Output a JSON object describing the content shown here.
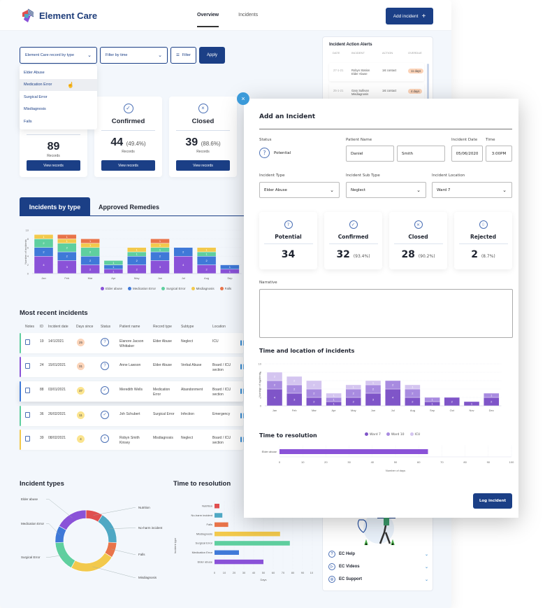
{
  "header": {
    "brand": "Element Care",
    "nav": [
      {
        "label": "Overview",
        "active": true
      },
      {
        "label": "Incidents",
        "active": false
      }
    ],
    "add_incident_label": "Add incident",
    "add_icon": "+"
  },
  "filters": {
    "record_type_label": "Element Care record by type",
    "time_label": "Filter by time",
    "filter_label": "Filter",
    "apply_label": "Apply",
    "dropdown_options": [
      "Elder Abuse",
      "Medication Error",
      "Surgical Error",
      "Misdiagnosis",
      "Falls"
    ],
    "hovered_option": "Medication Error"
  },
  "stat_cards": [
    {
      "title": "",
      "value": "89",
      "pct": "",
      "sub": "Records",
      "button": "View records",
      "icon": "none"
    },
    {
      "title": "Confirmed",
      "value": "44",
      "pct": "(49.4%)",
      "sub": "Records",
      "button": "View records",
      "icon": "check-circle-icon"
    },
    {
      "title": "Closed",
      "value": "39",
      "pct": "(88.6%)",
      "sub": "Records",
      "button": "View records",
      "icon": "x-circle-icon"
    }
  ],
  "tabs": [
    {
      "label": "Incidents by type",
      "active": true
    },
    {
      "label": "Approved Remedies",
      "active": false
    }
  ],
  "recent": {
    "title": "Most recent incidents",
    "columns": [
      "Notes",
      "ID",
      "Incident date",
      "Days since",
      "Status",
      "Patient name",
      "Record type",
      "Subtype",
      "Location"
    ],
    "rows": [
      {
        "id": "19",
        "date": "14/1/2021",
        "days": "25",
        "status": "?",
        "patient": "Elanore Jacson Whittaker",
        "type": "Elder Abuse",
        "subtype": "Neglect",
        "location": "ICU",
        "color": "#5fcf9f",
        "days_color": "#fbd3b8"
      },
      {
        "id": "24",
        "date": "15/01/2021",
        "days": "31",
        "status": "?",
        "patient": "Anne Lawson",
        "type": "Elder Abuse",
        "subtype": "Verbal Abuse",
        "location": "Board / ICU section",
        "color": "#8a52d8",
        "days_color": "#fbd3b8"
      },
      {
        "id": "88",
        "date": "03/01/2021",
        "days": "37",
        "status": "✓",
        "patient": "Meredith Wells",
        "type": "Medication Error",
        "subtype": "Abandonment",
        "location": "Board / ICU section",
        "color": "#3f79d8",
        "days_color": "#fbe48e"
      },
      {
        "id": "36",
        "date": "26/02/2021",
        "days": "11",
        "status": "✓",
        "patient": "Joh Schubert",
        "type": "Surgical Error",
        "subtype": "Infection",
        "location": "Emergency",
        "color": "#5fcf9f",
        "days_color": "#fbe48e"
      },
      {
        "id": "39",
        "date": "08/02/2021",
        "days": "4",
        "status": "×",
        "patient": "Robyn Smith Kinsey",
        "type": "Misdiagnosis",
        "subtype": "Neglect",
        "location": "Board / ICU section",
        "color": "#f2c94c",
        "days_color": "#fbe48e"
      }
    ]
  },
  "alerts": {
    "title": "Incident Action Alerts",
    "columns": [
      "DATE",
      "INCIDENT",
      "ACTION",
      "OVERDUE"
    ],
    "rows": [
      {
        "date": "27-1-21",
        "name": "Robyn Station",
        "type": "Elder Abuse",
        "action": "1st contact",
        "overdue": "11 days"
      },
      {
        "date": "25-1-21",
        "name": "Gary Sullivan",
        "type": "Misdiagnosis",
        "action": "1st contact",
        "overdue": "4 days"
      }
    ]
  },
  "help": {
    "items": [
      {
        "label": "EC Help",
        "icon": "question-circle-icon",
        "glyph": "?"
      },
      {
        "label": "EC Videos",
        "icon": "play-circle-icon",
        "glyph": "▷"
      },
      {
        "label": "EC Support",
        "icon": "lifebuoy-icon",
        "glyph": "◎"
      }
    ]
  },
  "incident_types_title": "Incident types",
  "time_to_resolution_title": "Time to resolution",
  "modal": {
    "title": "Add an Incident",
    "status_label": "Status",
    "status_value": "Potential",
    "patient_name_label": "Patient Name",
    "first_name": "Daniel",
    "last_name": "Smith",
    "date_label": "Incident Date",
    "date_value": "05/06/2020",
    "time_label": "Time",
    "time_value": "3:00PM",
    "type_label": "Incident Type",
    "type_value": "Elder Abuse",
    "subtype_label": "Incident Sub Type",
    "subtype_value": "Neglect",
    "location_label": "Incident Location",
    "location_value": "Ward 7",
    "cards": [
      {
        "title": "Potential",
        "value": "34",
        "pct": "",
        "glyph": "?"
      },
      {
        "title": "Confirmed",
        "value": "32",
        "pct": "(93.4%)",
        "glyph": "✓"
      },
      {
        "title": "Closed",
        "value": "28",
        "pct": "(90.2%)",
        "glyph": "×"
      },
      {
        "title": "Rejected",
        "value": "2",
        "pct": "(8.7%)",
        "glyph": "🗑"
      }
    ],
    "narrative_label": "Narrative",
    "narrative_value": "",
    "time_location_title": "Time and location of incidents",
    "resolution_title": "Time to resolution",
    "log_label": "Log incident",
    "close_glyph": "×"
  },
  "chart_data": [
    {
      "type": "bar",
      "stacked": true,
      "title": "Incidents by type",
      "ylabel": "Number of incidents",
      "ylim": [
        0,
        10
      ],
      "categories": [
        "Jan",
        "Feb",
        "Mar",
        "Apr",
        "May",
        "Jun",
        "Jul",
        "Aug",
        "Sep"
      ],
      "series": [
        {
          "name": "Elder abuse",
          "color": "#8a52d8",
          "values": [
            4,
            3,
            2,
            1,
            2,
            3,
            4,
            2,
            1
          ]
        },
        {
          "name": "Medication Error",
          "color": "#3f79d8",
          "values": [
            2,
            2,
            2,
            1,
            2,
            2,
            2,
            2,
            1
          ]
        },
        {
          "name": "Surgical Error",
          "color": "#5fcf9f",
          "values": [
            2,
            2,
            2,
            1,
            1,
            1,
            0,
            1,
            0
          ]
        },
        {
          "name": "Misdiagnosis",
          "color": "#f2c94c",
          "values": [
            1,
            1,
            1,
            0,
            1,
            1,
            0,
            1,
            0
          ]
        },
        {
          "name": "Falls",
          "color": "#e8744a",
          "values": [
            0,
            1,
            1,
            0,
            0,
            1,
            0,
            0,
            0
          ]
        }
      ]
    },
    {
      "type": "pie",
      "donut": true,
      "title": "Incident types",
      "categories": [
        "Nutrition",
        "No-harm incident",
        "Falls",
        "Misdiagnosis",
        "Surgical Error",
        "Medication Error",
        "Elder abuse"
      ],
      "values": [
        9,
        17,
        8,
        24,
        16,
        9,
        17
      ],
      "colors": [
        "#e04f4f",
        "#4fa8c4",
        "#e8744a",
        "#f2c94c",
        "#5fcf9f",
        "#3f79d8",
        "#8a52d8"
      ]
    },
    {
      "type": "bar",
      "orientation": "horizontal",
      "title": "Time to resolution",
      "xlabel": "Days",
      "ylabel": "Incident type",
      "xlim": [
        0,
        100
      ],
      "categories": [
        "Nutrition",
        "No-harm incident",
        "Falls",
        "Misdiagnosis",
        "Surgical Error",
        "Medication Error",
        "Elder abuse"
      ],
      "values": [
        5,
        8,
        14,
        67,
        77,
        25,
        50
      ],
      "colors": [
        "#e04f4f",
        "#4fa8c4",
        "#e8744a",
        "#f2c94c",
        "#5fcf9f",
        "#3f79d8",
        "#8a52d8"
      ]
    },
    {
      "type": "bar",
      "stacked": true,
      "title": "Time and location of incidents",
      "ylabel": "Number of incidents",
      "ylim": [
        0,
        10
      ],
      "categories": [
        "Jan",
        "Feb",
        "Mar",
        "Apr",
        "May",
        "Jun",
        "Jul",
        "Aug",
        "Sep",
        "Oct",
        "Nov",
        "Dec"
      ],
      "series": [
        {
          "name": "Ward 7",
          "color": "#7f55c8",
          "values": [
            4,
            3,
            2,
            1,
            2,
            3,
            4,
            2,
            1,
            2,
            1,
            2
          ]
        },
        {
          "name": "Ward 10",
          "color": "#a88be0",
          "values": [
            2,
            2,
            2,
            1,
            2,
            2,
            2,
            2,
            1,
            0,
            0,
            1
          ]
        },
        {
          "name": "ICU",
          "color": "#d4c5f0",
          "values": [
            2,
            2,
            2,
            1,
            1,
            1,
            0,
            1,
            0,
            0,
            0,
            0
          ]
        }
      ]
    },
    {
      "type": "bar",
      "orientation": "horizontal",
      "title": "Time to resolution",
      "xlabel": "Number of days",
      "xlim": [
        0,
        100
      ],
      "categories": [
        "Elder abuse"
      ],
      "values": [
        64
      ],
      "colors": [
        "#8a52d8"
      ]
    }
  ]
}
